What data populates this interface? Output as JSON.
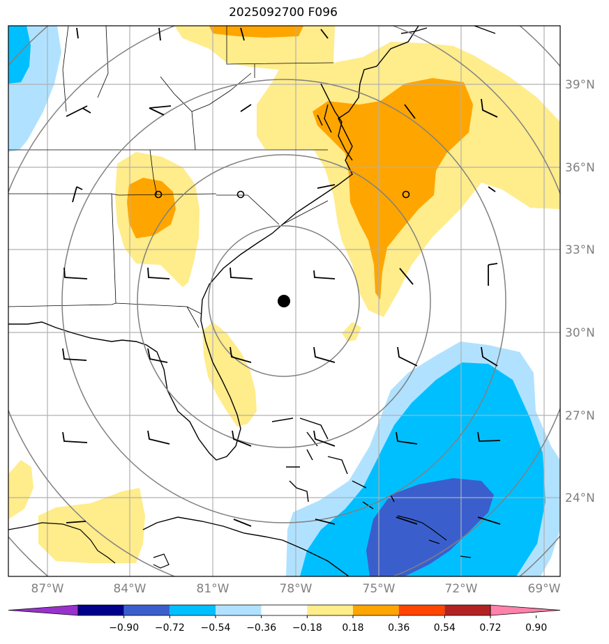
{
  "title": "2025092700 F096",
  "lat_labels": [
    "39°N",
    "36°N",
    "33°N",
    "30°N",
    "27°N",
    "24°N"
  ],
  "lon_labels": [
    "87°W",
    "84°W",
    "81°W",
    "78°W",
    "75°W",
    "72°W",
    "69°W"
  ],
  "colorbar": {
    "colors": [
      "#9932cc",
      "#00008b",
      "#3a5fcd",
      "#00bfff",
      "#b0e2ff",
      "#ffffff",
      "#ffec8b",
      "#ffa500",
      "#ff4500",
      "#b22222",
      "#ff82ab"
    ],
    "ticks": [
      "−0.90",
      "−0.72",
      "−0.54",
      "−0.36",
      "−0.18",
      "0.18",
      "0.36",
      "0.54",
      "0.72",
      "0.90"
    ]
  },
  "palette": {
    "light_yellow": "#ffec8b",
    "orange": "#ffa500",
    "light_blue": "#b0e2ff",
    "deep_sky_blue": "#00bfff",
    "royal_blue": "#3a5fcd",
    "grid": "#b0b0b0",
    "range_ring": "#808080"
  },
  "map": {
    "center_marker": "storm-center",
    "range_rings": 4,
    "reference_points": 3
  }
}
